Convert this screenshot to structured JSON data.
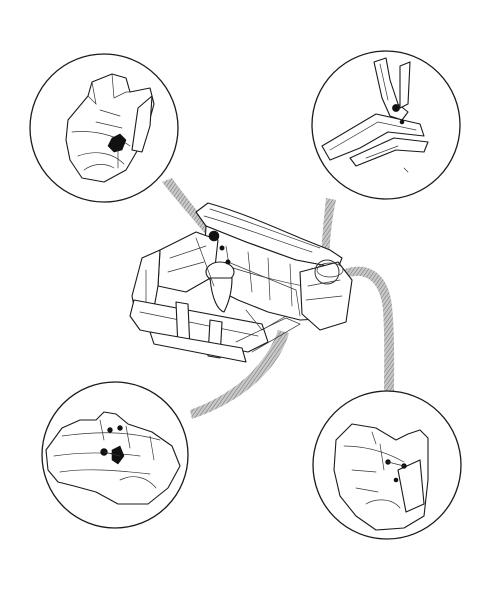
{
  "figure": {
    "type": "exploded-assembly-illustration",
    "main_assembly": "front-body-structure",
    "detail_count": 4,
    "details": [
      {
        "id": "detail-top-left",
        "depicts": "wheelhouse-panel"
      },
      {
        "id": "detail-top-right",
        "depicts": "pillar-rail-joint"
      },
      {
        "id": "detail-bottom-left",
        "depicts": "side-member-panel"
      },
      {
        "id": "detail-bottom-right",
        "depicts": "front-pillar-inner"
      }
    ],
    "colors": {
      "line": "#1a1a1a",
      "connector_hatch": "#9a9a9a",
      "background": "#ffffff"
    }
  }
}
